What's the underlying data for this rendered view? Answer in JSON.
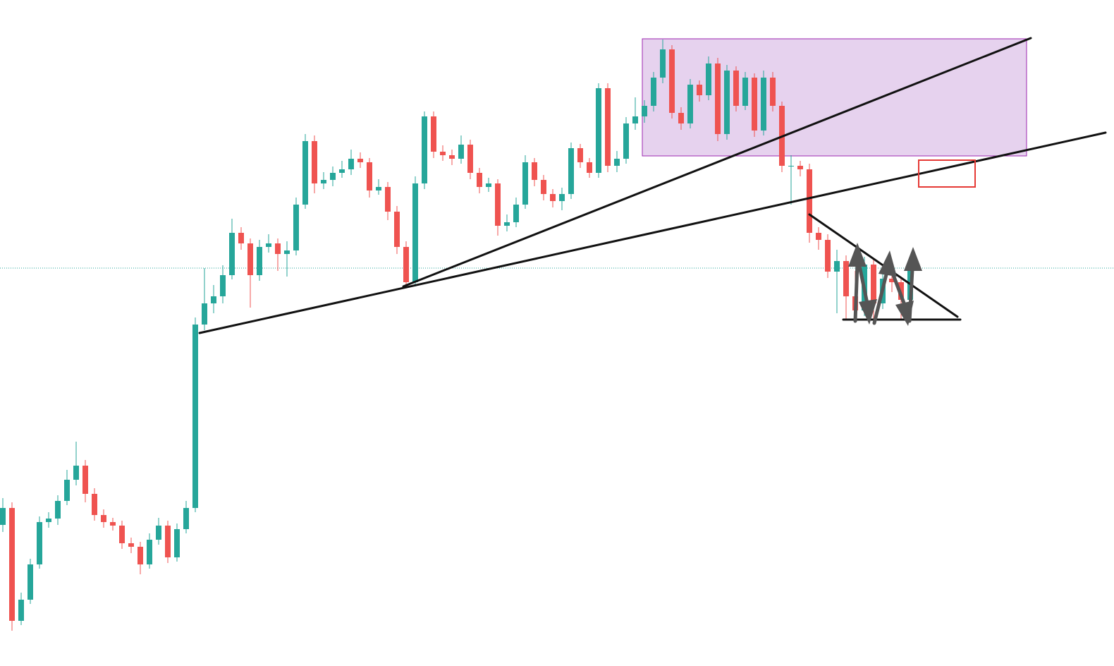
{
  "chart_data": {
    "type": "candlestick",
    "up_color": "#26a69a",
    "down_color": "#ef5350",
    "ylim": [
      0,
      944
    ],
    "candles": [
      [
        200,
        238,
        190,
        224
      ],
      [
        224,
        232,
        50,
        64
      ],
      [
        64,
        104,
        58,
        94
      ],
      [
        94,
        152,
        88,
        144
      ],
      [
        144,
        212,
        138,
        204
      ],
      [
        204,
        218,
        196,
        209
      ],
      [
        209,
        242,
        200,
        234
      ],
      [
        234,
        278,
        228,
        264
      ],
      [
        264,
        318,
        256,
        284
      ],
      [
        284,
        292,
        232,
        244
      ],
      [
        244,
        252,
        206,
        214
      ],
      [
        214,
        222,
        196,
        204
      ],
      [
        204,
        210,
        192,
        199
      ],
      [
        199,
        206,
        166,
        174
      ],
      [
        174,
        182,
        160,
        169
      ],
      [
        169,
        176,
        130,
        144
      ],
      [
        144,
        188,
        138,
        179
      ],
      [
        179,
        210,
        172,
        199
      ],
      [
        199,
        206,
        146,
        154
      ],
      [
        154,
        202,
        148,
        194
      ],
      [
        194,
        234,
        188,
        224
      ],
      [
        224,
        494,
        218,
        484
      ],
      [
        484,
        564,
        476,
        514
      ],
      [
        514,
        540,
        500,
        524
      ],
      [
        524,
        568,
        514,
        554
      ],
      [
        554,
        634,
        548,
        614
      ],
      [
        614,
        622,
        590,
        599
      ],
      [
        599,
        606,
        508,
        554
      ],
      [
        554,
        604,
        546,
        594
      ],
      [
        594,
        612,
        586,
        599
      ],
      [
        599,
        606,
        560,
        584
      ],
      [
        584,
        602,
        552,
        589
      ],
      [
        589,
        664,
        582,
        654
      ],
      [
        654,
        754,
        648,
        744
      ],
      [
        744,
        752,
        670,
        684
      ],
      [
        684,
        700,
        676,
        689
      ],
      [
        689,
        708,
        680,
        699
      ],
      [
        699,
        716,
        692,
        704
      ],
      [
        704,
        732,
        696,
        719
      ],
      [
        719,
        728,
        706,
        714
      ],
      [
        714,
        720,
        664,
        674
      ],
      [
        674,
        690,
        668,
        679
      ],
      [
        679,
        686,
        632,
        644
      ],
      [
        644,
        652,
        584,
        594
      ],
      [
        594,
        602,
        538,
        544
      ],
      [
        544,
        694,
        538,
        684
      ],
      [
        684,
        786,
        676,
        779
      ],
      [
        779,
        786,
        720,
        729
      ],
      [
        729,
        738,
        716,
        724
      ],
      [
        724,
        732,
        710,
        719
      ],
      [
        719,
        752,
        712,
        739
      ],
      [
        739,
        746,
        690,
        699
      ],
      [
        699,
        706,
        670,
        679
      ],
      [
        679,
        692,
        672,
        684
      ],
      [
        684,
        690,
        610,
        624
      ],
      [
        624,
        640,
        616,
        629
      ],
      [
        629,
        664,
        622,
        654
      ],
      [
        654,
        724,
        648,
        714
      ],
      [
        714,
        720,
        680,
        689
      ],
      [
        689,
        696,
        660,
        669
      ],
      [
        669,
        676,
        650,
        659
      ],
      [
        659,
        678,
        646,
        669
      ],
      [
        669,
        742,
        662,
        734
      ],
      [
        734,
        740,
        706,
        714
      ],
      [
        714,
        720,
        692,
        699
      ],
      [
        699,
        826,
        692,
        819
      ],
      [
        819,
        826,
        700,
        709
      ],
      [
        709,
        730,
        700,
        719
      ],
      [
        719,
        778,
        712,
        769
      ],
      [
        769,
        806,
        760,
        779
      ],
      [
        779,
        802,
        770,
        794
      ],
      [
        794,
        842,
        786,
        834
      ],
      [
        834,
        888,
        826,
        874
      ],
      [
        874,
        880,
        776,
        784
      ],
      [
        784,
        792,
        760,
        769
      ],
      [
        769,
        832,
        762,
        824
      ],
      [
        824,
        830,
        800,
        809
      ],
      [
        809,
        864,
        802,
        854
      ],
      [
        854,
        862,
        744,
        754
      ],
      [
        754,
        852,
        746,
        844
      ],
      [
        844,
        850,
        786,
        794
      ],
      [
        794,
        842,
        788,
        834
      ],
      [
        834,
        840,
        750,
        759
      ],
      [
        759,
        844,
        752,
        834
      ],
      [
        834,
        842,
        786,
        794
      ],
      [
        794,
        800,
        700,
        709
      ],
      [
        709,
        724,
        654,
        709
      ],
      [
        709,
        716,
        694,
        704
      ],
      [
        704,
        712,
        600,
        614
      ],
      [
        614,
        622,
        590,
        604
      ],
      [
        604,
        612,
        550,
        559
      ],
      [
        559,
        590,
        500,
        574
      ],
      [
        574,
        582,
        490,
        524
      ],
      [
        524,
        560,
        492,
        504
      ],
      [
        504,
        580,
        496,
        569
      ],
      [
        569,
        576,
        492,
        514
      ],
      [
        514,
        560,
        506,
        549
      ],
      [
        549,
        556,
        530,
        544
      ],
      [
        544,
        552,
        490,
        519
      ],
      [
        519,
        572,
        500,
        564
      ]
    ]
  }
}
